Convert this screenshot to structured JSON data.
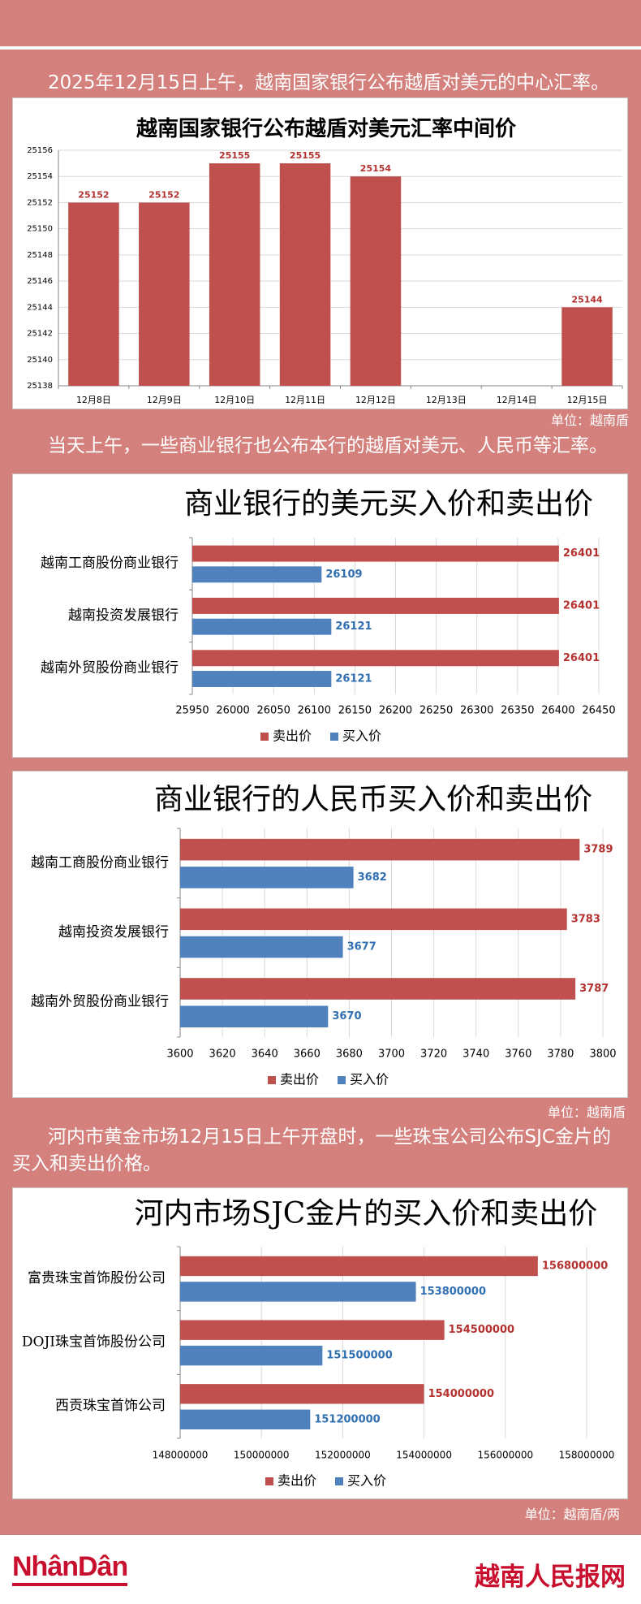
{
  "theme": {
    "background": "#d4817d",
    "brand_red": "#c8102e"
  },
  "intro_1": "2025年12月15日上午，越南国家银行公布越盾对美元的中心汇率。",
  "unit_1": "单位：越南盾",
  "intro_2": "当天上午，一些商业银行也公布本行的越盾对美元、人民币等汇率。",
  "unit_2": "单位：越南盾",
  "intro_3": "河内市黄金市场12月15日上午开盘时，一些珠宝公司公布SJC金片的买入和卖出价格。",
  "unit_3": "单位：越南盾/两",
  "footer": {
    "logo": "NhânDân",
    "site": "越南人民报网"
  },
  "chart_data": [
    {
      "type": "bar",
      "title": "越南国家银行公布越盾对美元汇率中间价",
      "categories": [
        "12月8日",
        "12月9日",
        "12月10日",
        "12月11日",
        "12月12日",
        "12月13日",
        "12月14日",
        "12月15日"
      ],
      "values": [
        25152,
        25152,
        25155,
        25155,
        25154,
        null,
        null,
        25144
      ],
      "yticks": [
        25138,
        25140,
        25142,
        25144,
        25146,
        25148,
        25150,
        25152,
        25154,
        25156
      ],
      "ylim": [
        25138,
        25156
      ],
      "grid": true,
      "color": "#c0504d",
      "label_color": "#b3312e"
    },
    {
      "type": "bar",
      "orientation": "horizontal",
      "title": "商业银行的美元买入价和卖出价",
      "categories": [
        "越南工商股份商业银行",
        "越南投资发展银行",
        "越南外贸股份商业银行"
      ],
      "series": [
        {
          "name": "卖出价",
          "values": [
            26401,
            26401,
            26401
          ],
          "color": "#c0504d",
          "label_color": "#b3312e"
        },
        {
          "name": "买入价",
          "values": [
            26109,
            26121,
            26121
          ],
          "color": "#4f81bd",
          "label_color": "#2f6fb2"
        }
      ],
      "xticks": [
        25950,
        26000,
        26050,
        26100,
        26150,
        26200,
        26250,
        26300,
        26350,
        26400,
        26450
      ],
      "xlim": [
        25950,
        26450
      ],
      "grid": true,
      "legend": "bottom"
    },
    {
      "type": "bar",
      "orientation": "horizontal",
      "title": "商业银行的人民币买入价和卖出价",
      "categories": [
        "越南工商股份商业银行",
        "越南投资发展银行",
        "越南外贸股份商业银行"
      ],
      "series": [
        {
          "name": "卖出价",
          "values": [
            3789,
            3783,
            3787
          ],
          "color": "#c0504d",
          "label_color": "#b3312e"
        },
        {
          "name": "买入价",
          "values": [
            3682,
            3677,
            3670
          ],
          "color": "#4f81bd",
          "label_color": "#2f6fb2"
        }
      ],
      "xticks": [
        3600,
        3620,
        3640,
        3660,
        3680,
        3700,
        3720,
        3740,
        3760,
        3780,
        3800
      ],
      "xlim": [
        3600,
        3800
      ],
      "grid": true,
      "legend": "bottom"
    },
    {
      "type": "bar",
      "orientation": "horizontal",
      "title": "河内市场SJC金片的买入价和卖出价",
      "categories": [
        "富贵珠宝首饰股份公司",
        "DOJI珠宝首饰股份公司",
        "西贡珠宝首饰公司"
      ],
      "series": [
        {
          "name": "卖出价",
          "values": [
            156800000,
            154500000,
            154000000
          ],
          "color": "#c0504d",
          "label_color": "#b3312e"
        },
        {
          "name": "买入价",
          "values": [
            153800000,
            151500000,
            151200000
          ],
          "color": "#4f81bd",
          "label_color": "#2f6fb2"
        }
      ],
      "xticks": [
        148000000,
        150000000,
        152000000,
        154000000,
        156000000,
        158000000
      ],
      "xlim": [
        148000000,
        158000000
      ],
      "grid": true,
      "legend": "bottom"
    }
  ]
}
